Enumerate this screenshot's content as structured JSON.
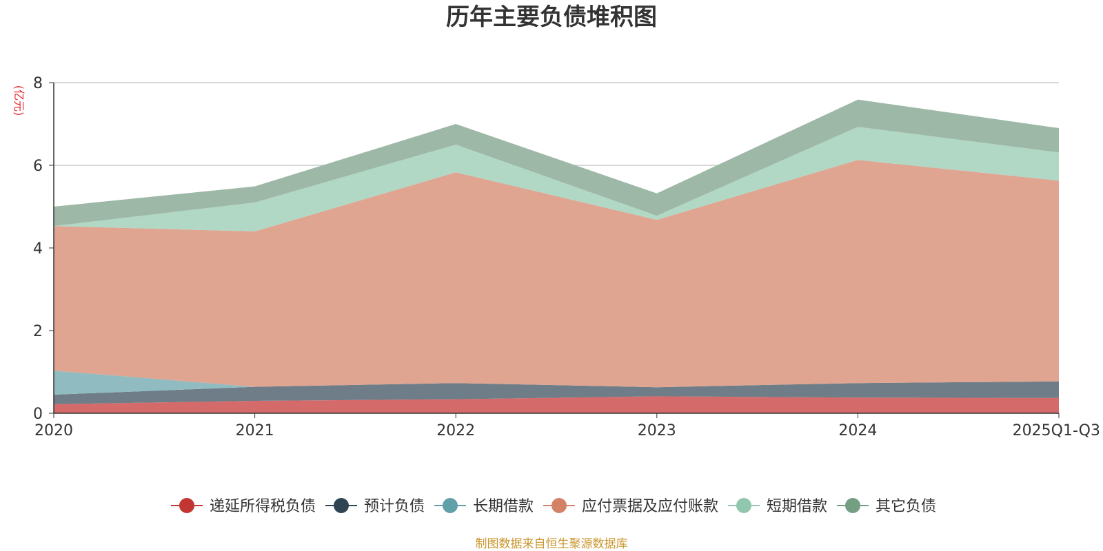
{
  "chart_data": {
    "type": "area",
    "stacked": true,
    "title": "历年主要负债堆积图",
    "ylabel": "(亿元)",
    "ylim": [
      0,
      8
    ],
    "yticks": [
      "0",
      "2",
      "4",
      "6",
      "8"
    ],
    "categories": [
      "2020",
      "2021",
      "2022",
      "2023",
      "2024",
      "2025Q1-Q3"
    ],
    "series": [
      {
        "name": "递延所得税负债",
        "color": "#c23531",
        "fill": "#d46a69",
        "values": [
          0.22,
          0.3,
          0.34,
          0.41,
          0.38,
          0.37
        ]
      },
      {
        "name": "预计负债",
        "color": "#2f4554",
        "fill": "#6e7d88",
        "values": [
          0.23,
          0.34,
          0.39,
          0.22,
          0.35,
          0.4
        ]
      },
      {
        "name": "长期借款",
        "color": "#61a0a8",
        "fill": "#90bbc1",
        "values": [
          0.58,
          0.0,
          0.0,
          0.0,
          0.0,
          0.0
        ]
      },
      {
        "name": "应付票据及应付账款",
        "color": "#d48265",
        "fill": "#dfa591",
        "values": [
          3.5,
          3.76,
          5.1,
          4.05,
          5.4,
          4.86
        ]
      },
      {
        "name": "短期借款",
        "color": "#91c7ae",
        "fill": "#b1d7c5",
        "values": [
          0.0,
          0.7,
          0.67,
          0.1,
          0.8,
          0.68
        ]
      },
      {
        "name": "其它负债",
        "color": "#749f83",
        "fill": "#9eb8a7",
        "values": [
          0.47,
          0.39,
          0.5,
          0.54,
          0.66,
          0.59
        ]
      }
    ],
    "legend_position": "bottom",
    "source": "制图数据来自恒生聚源数据库"
  }
}
